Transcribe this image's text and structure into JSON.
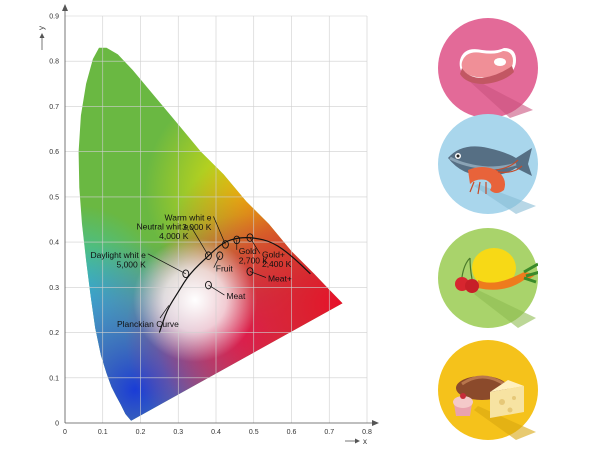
{
  "chart_data": {
    "type": "scatter",
    "title": "",
    "xlabel": "x",
    "ylabel": "y",
    "xlim": [
      0,
      0.8
    ],
    "ylim": [
      0,
      0.9
    ],
    "xticks": [
      "0",
      "0.1",
      "0.2",
      "0.3",
      "0.4",
      "0.5",
      "0.6",
      "0.7",
      "0.8"
    ],
    "yticks": [
      "0",
      "0.1",
      "0.2",
      "0.3",
      "0.4",
      "0.5",
      "0.6",
      "0.7",
      "0.8",
      "0.9"
    ],
    "grid": true,
    "background": "CIE 1931 chromaticity diagram (spectral locus)",
    "curve": {
      "name": "Planckian Curve",
      "points": [
        [
          0.25,
          0.2
        ],
        [
          0.27,
          0.25
        ],
        [
          0.3,
          0.29
        ],
        [
          0.33,
          0.33
        ],
        [
          0.38,
          0.37
        ],
        [
          0.42,
          0.4
        ],
        [
          0.46,
          0.41
        ],
        [
          0.5,
          0.41
        ],
        [
          0.55,
          0.4
        ],
        [
          0.6,
          0.37
        ],
        [
          0.65,
          0.33
        ]
      ]
    },
    "points": [
      {
        "label_lines": [
          "Daylight whit e",
          "5,000 K"
        ],
        "x": 0.32,
        "y": 0.33
      },
      {
        "label_lines": [
          "Neutral whit e",
          "4,000 K"
        ],
        "x": 0.38,
        "y": 0.37
      },
      {
        "label_lines": [
          "Warm whit e",
          "3,000 K"
        ],
        "x": 0.425,
        "y": 0.395
      },
      {
        "label_lines": [
          "Fruit"
        ],
        "x": 0.41,
        "y": 0.37
      },
      {
        "label_lines": [
          "Gold",
          "2,700 K"
        ],
        "x": 0.455,
        "y": 0.405
      },
      {
        "label_lines": [
          "Gold+",
          "2,400 K"
        ],
        "x": 0.49,
        "y": 0.41
      },
      {
        "label_lines": [
          "Meat"
        ],
        "x": 0.38,
        "y": 0.305
      },
      {
        "label_lines": [
          "Meat+"
        ],
        "x": 0.49,
        "y": 0.335
      }
    ],
    "colors": {
      "gridline": "#cfcfcf",
      "curve": "#111111"
    }
  },
  "icons": [
    {
      "name": "meat-icon",
      "bg": "#e36a98"
    },
    {
      "name": "fish-shrimp-icon",
      "bg": "#a9d6ec"
    },
    {
      "name": "fruit-vegetable-icon",
      "bg": "#a9d36b"
    },
    {
      "name": "bread-cheese-icon",
      "bg": "#f5c21b"
    }
  ]
}
